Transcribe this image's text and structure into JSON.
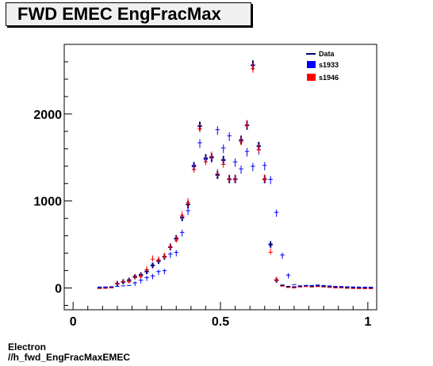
{
  "title": "FWD EMEC EngFracMax",
  "footer": {
    "line1": "Electron",
    "line2": "//h_fwd_EngFracMaxEMEC"
  },
  "chart_data": {
    "type": "scatter",
    "title": "FWD EMEC EngFracMax",
    "xlabel": "",
    "ylabel": "",
    "xlim": [
      -0.03,
      1.03
    ],
    "ylim": [
      -250,
      2800
    ],
    "x_ticks": [
      0,
      0.5,
      1
    ],
    "x_tick_labels": [
      "0",
      "0.5",
      "1"
    ],
    "y_ticks": [
      0,
      1000,
      2000
    ],
    "y_tick_labels": [
      "0",
      "1000",
      "2000"
    ],
    "grid": false,
    "legend_position": "top-right",
    "bin_width": 0.02,
    "x": [
      0.09,
      0.11,
      0.13,
      0.15,
      0.17,
      0.19,
      0.21,
      0.23,
      0.25,
      0.27,
      0.29,
      0.31,
      0.33,
      0.35,
      0.37,
      0.39,
      0.41,
      0.43,
      0.45,
      0.47,
      0.49,
      0.51,
      0.53,
      0.55,
      0.57,
      0.59,
      0.61,
      0.63,
      0.65,
      0.67,
      0.69,
      0.71,
      0.73,
      0.75,
      0.77,
      0.79,
      0.81,
      0.83,
      0.85,
      0.87,
      0.89,
      0.91,
      0.93,
      0.95,
      0.97,
      0.99,
      1.01
    ],
    "series": [
      {
        "name": "Data",
        "color": "#00007f",
        "kind": "line",
        "values": [
          3,
          5,
          10,
          50,
          70,
          90,
          130,
          150,
          190,
          260,
          310,
          360,
          470,
          570,
          810,
          960,
          1400,
          1860,
          1490,
          1500,
          1300,
          1470,
          1250,
          1250,
          1700,
          1870,
          2560,
          1630,
          1250,
          500,
          90,
          30,
          15,
          10,
          20,
          25,
          20,
          25,
          20,
          15,
          10,
          10,
          5,
          3,
          2,
          1,
          1
        ]
      },
      {
        "name": "s1933",
        "color": "#0000ff",
        "kind": "cross",
        "values": [
          2,
          3,
          5,
          10,
          15,
          20,
          50,
          80,
          110,
          130,
          180,
          190,
          380,
          400,
          630,
          880,
          1400,
          1660,
          1470,
          1490,
          1810,
          1600,
          1740,
          1440,
          1360,
          1560,
          1390,
          1580,
          1400,
          1240,
          860,
          370,
          140,
          30,
          15,
          10,
          20,
          25,
          20,
          15,
          10,
          8,
          5,
          3,
          2,
          1,
          1
        ]
      },
      {
        "name": "s1946",
        "color": "#ff0000",
        "kind": "cross",
        "values": [
          3,
          5,
          10,
          60,
          80,
          80,
          130,
          140,
          220,
          340,
          330,
          370,
          480,
          560,
          840,
          990,
          1370,
          1840,
          1460,
          1520,
          1320,
          1430,
          1260,
          1260,
          1690,
          1880,
          2530,
          1600,
          1260,
          420,
          100,
          30,
          15,
          10,
          20,
          25,
          20,
          25,
          20,
          15,
          10,
          10,
          5,
          3,
          2,
          1,
          1
        ]
      }
    ]
  }
}
